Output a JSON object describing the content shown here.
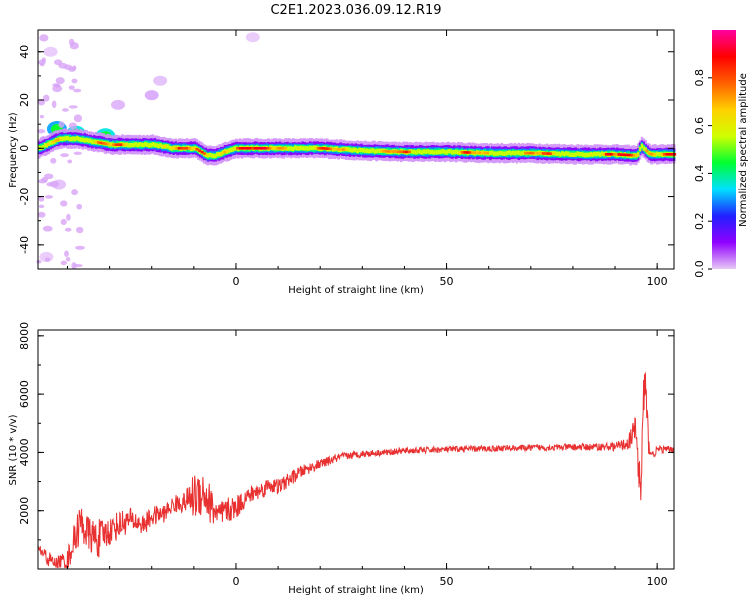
{
  "title": "C2E1.2023.036.09.12.R19",
  "chart_data": [
    {
      "type": "heatmap",
      "title": "",
      "xlabel": "Height of straight line (km)",
      "ylabel": "Frequency (Hz)",
      "xlim": [
        -47,
        104
      ],
      "ylim": [
        -50,
        49
      ],
      "xticks": [
        0,
        50,
        100
      ],
      "yticks": [
        -40,
        -20,
        0,
        20,
        40
      ],
      "colorbar": {
        "label": "Normalized spectral amplitude",
        "range": [
          0,
          1
        ],
        "ticks": [
          0.0,
          0.2,
          0.4,
          0.6,
          0.8
        ],
        "colormap": [
          "#e8c8f4",
          "#9000ff",
          "#2020ff",
          "#00e0ff",
          "#00ff30",
          "#d0ff00",
          "#ffd000",
          "#ff6000",
          "#ff0000",
          "#ff00a0"
        ]
      },
      "ridge": {
        "x": [
          -47,
          -42,
          -38,
          -35,
          -30,
          -25,
          -20,
          -15,
          -10,
          -7,
          -5,
          -3,
          0,
          5,
          10,
          15,
          20,
          30,
          40,
          50,
          60,
          70,
          80,
          90,
          95,
          96,
          98,
          104
        ],
        "y": [
          0,
          4,
          4,
          3,
          1.5,
          1.5,
          1.5,
          0,
          0,
          -3,
          -3,
          -1.5,
          0,
          0,
          0,
          0,
          0,
          -1,
          -1.5,
          -1.5,
          -2,
          -2,
          -2.5,
          -2.5,
          -3,
          1,
          -2.5,
          -2.5
        ]
      },
      "scatter_blobs": [
        {
          "x": -42.5,
          "y": 8,
          "amp": 0.3
        },
        {
          "x": -38,
          "y": 6,
          "amp": 0.35
        },
        {
          "x": -31,
          "y": 5,
          "amp": 0.35
        },
        {
          "x": -20,
          "y": 22,
          "amp": 0.05
        },
        {
          "x": -18,
          "y": 28,
          "amp": 0.03
        },
        {
          "x": -28,
          "y": 18,
          "amp": 0.04
        },
        {
          "x": 4,
          "y": 46,
          "amp": 0.02
        },
        {
          "x": -44,
          "y": 40,
          "amp": 0.02
        },
        {
          "x": -45,
          "y": -45,
          "amp": 0.02
        },
        {
          "x": -42,
          "y": -15,
          "amp": 0.03
        }
      ]
    },
    {
      "type": "line",
      "title": "",
      "xlabel": "Height of straight line (km)",
      "ylabel": "SNR (10 * v/v)",
      "xlim": [
        -47,
        104
      ],
      "ylim": [
        0,
        8200
      ],
      "xticks": [
        0,
        50,
        100
      ],
      "yticks": [
        2000,
        4000,
        6000,
        8000
      ],
      "color": "#e83030",
      "series": [
        {
          "x": [
            -47,
            -45,
            -43,
            -40,
            -37,
            -35,
            -33,
            -30,
            -28,
            -25,
            -22,
            -20,
            -17,
            -15,
            -12,
            -10,
            -8,
            -6,
            -4,
            -2,
            0,
            2,
            4,
            6,
            8,
            10,
            12,
            15,
            18,
            20,
            25,
            30,
            35,
            40,
            45,
            50,
            55,
            60,
            65,
            70,
            75,
            80,
            85,
            90,
            93,
            95,
            96,
            97,
            98,
            99,
            100,
            104
          ],
          "values": [
            700,
            400,
            200,
            300,
            1600,
            1200,
            1000,
            1300,
            1500,
            1700,
            1500,
            1800,
            1900,
            2200,
            2300,
            2500,
            2700,
            2200,
            1800,
            2000,
            2100,
            2400,
            2600,
            2700,
            2900,
            2800,
            3000,
            3300,
            3500,
            3600,
            3850,
            3950,
            4000,
            4050,
            4080,
            4100,
            4120,
            4130,
            4150,
            4160,
            4170,
            4180,
            4190,
            4200,
            4300,
            4800,
            2500,
            6500,
            4200,
            3900,
            4100,
            4100
          ],
          "noise_amplitude": [
            150,
            300,
            200,
            400,
            700,
            600,
            700,
            500,
            500,
            400,
            350,
            350,
            300,
            300,
            350,
            800,
            900,
            700,
            500,
            450,
            400,
            350,
            300,
            300,
            280,
            280,
            250,
            220,
            180,
            160,
            140,
            120,
            110,
            110,
            110,
            110,
            110,
            110,
            110,
            110,
            110,
            120,
            120,
            150,
            200,
            600,
            1200,
            1500,
            300,
            150,
            120,
            120
          ]
        }
      ]
    }
  ]
}
